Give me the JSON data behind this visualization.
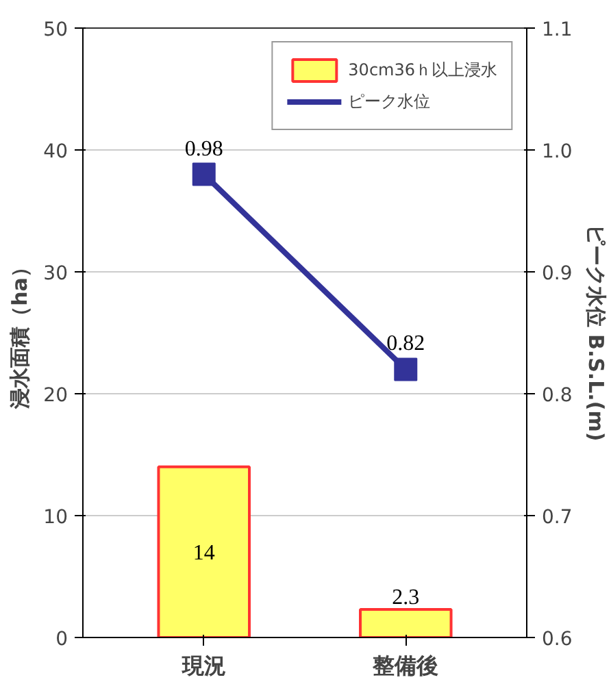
{
  "chart_data": {
    "type": "bar",
    "categories": [
      "現況",
      "整備後"
    ],
    "ylabel": "浸水面積（ha）",
    "y2label": "ピーク水位 B.S.L.(m)",
    "ylim": [
      0,
      50
    ],
    "yticks": [
      0,
      10,
      20,
      30,
      40,
      50
    ],
    "y2lim": [
      0.6,
      1.1
    ],
    "y2ticks": [
      {
        "value": 0.6,
        "label": "0.6"
      },
      {
        "value": 0.7,
        "label": "0.7"
      },
      {
        "value": 0.8,
        "label": "0.8"
      },
      {
        "value": 0.9,
        "label": "0.9"
      },
      {
        "value": 1.0,
        "label": "1.0"
      },
      {
        "value": 1.1,
        "label": "1.1"
      }
    ],
    "series": [
      {
        "name": "30cm36ｈ以上浸水",
        "color": "#ffff66",
        "values": [
          14,
          2.3
        ]
      },
      {
        "name": "ピーク水位",
        "type": "line",
        "axis": "y2",
        "color": "#333399",
        "marker": "square",
        "values": [
          0.98,
          0.82
        ]
      }
    ],
    "data_labels": true,
    "grid": "y",
    "legend": "top right"
  }
}
